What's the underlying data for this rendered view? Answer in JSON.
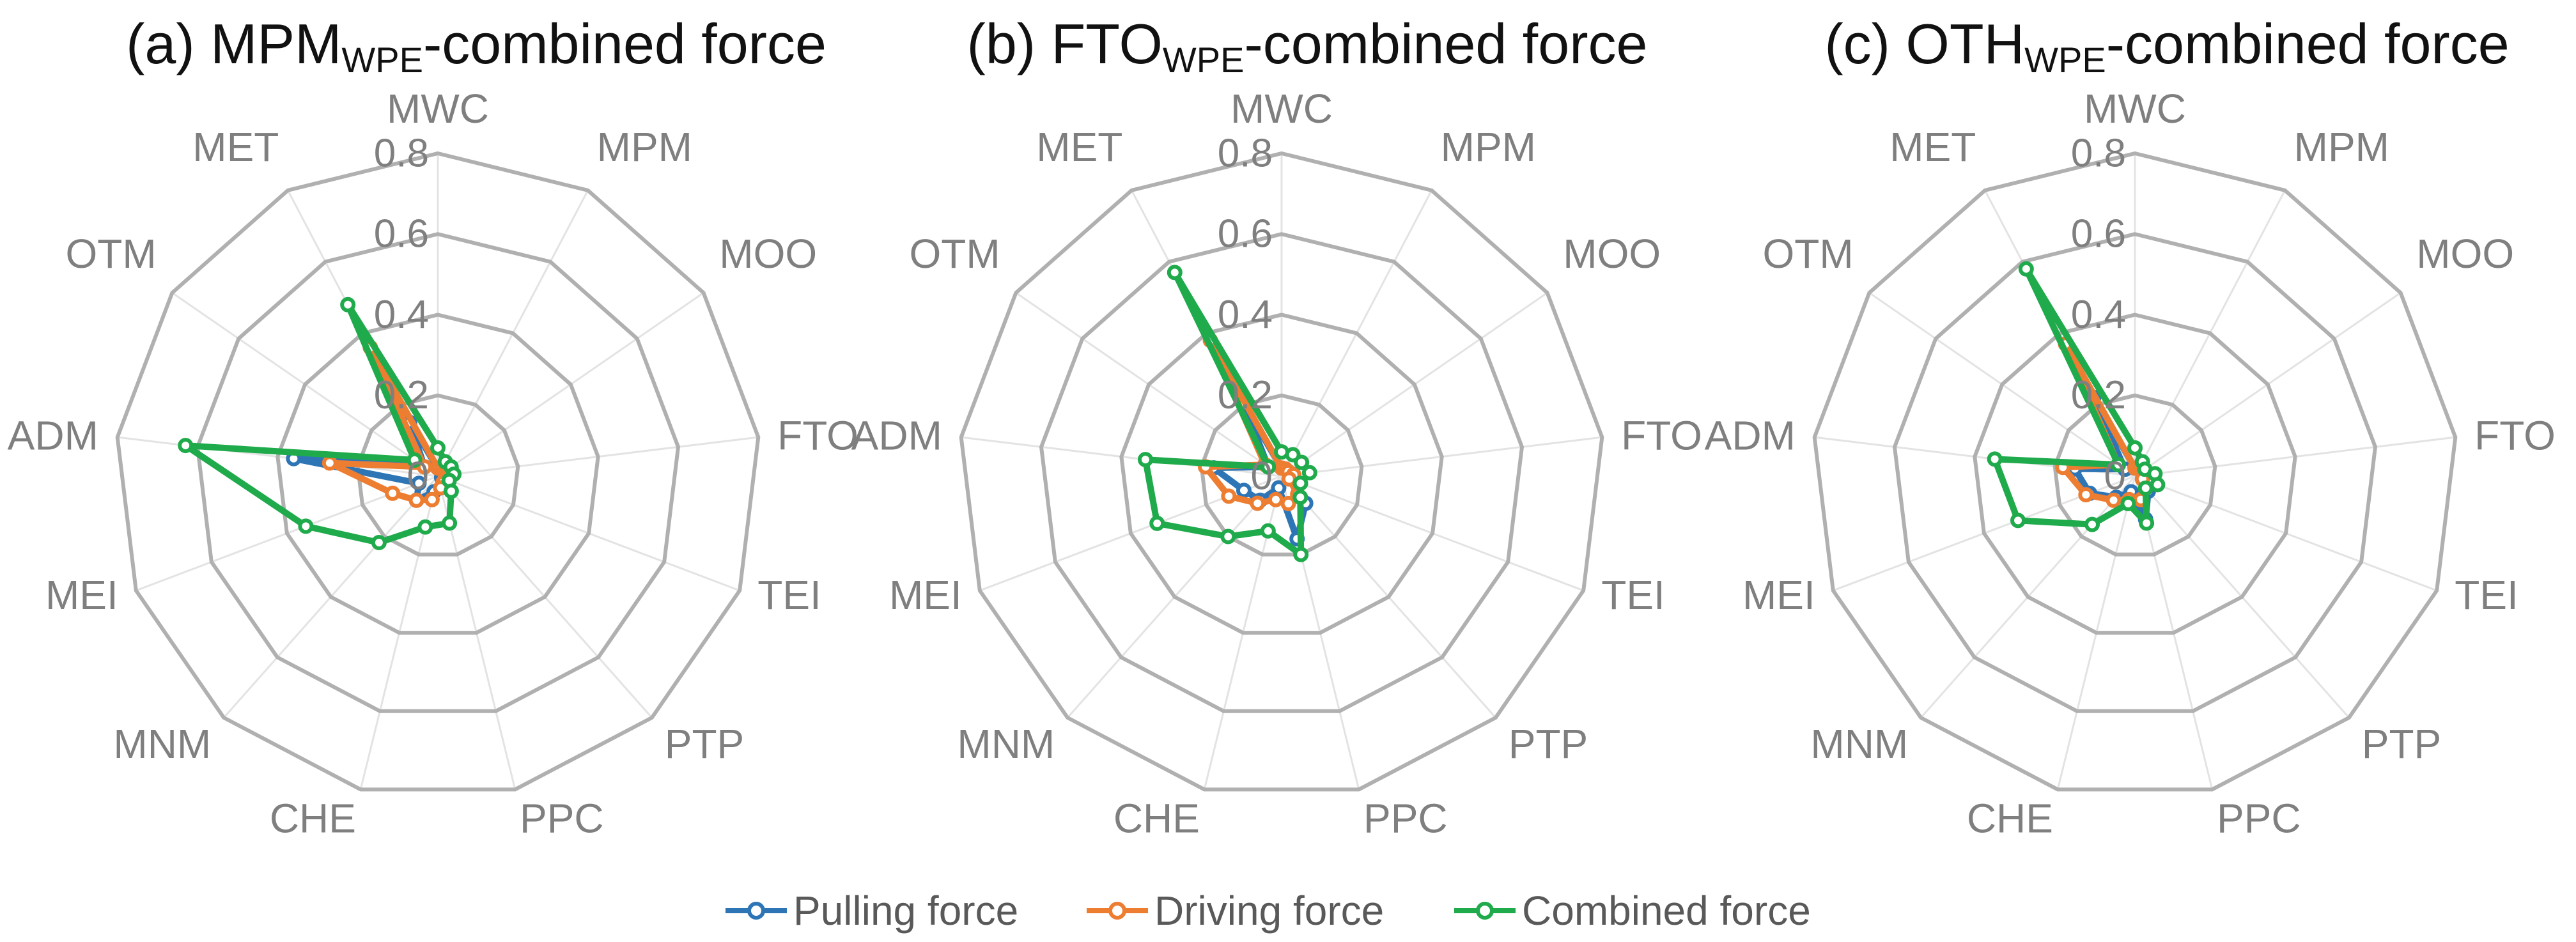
{
  "chart_data": [
    {
      "type": "radar",
      "title_main": "(a) MPM",
      "title_sub": "WPE",
      "title_rest": "-combined force",
      "axes": [
        "MWC",
        "MPM",
        "MOO",
        "FTO",
        "TEI",
        "PTP",
        "PPC",
        "CHE",
        "MNM",
        "MEI",
        "ADM",
        "OTM",
        "MET"
      ],
      "r_ticks": [
        "0",
        "0.2",
        "0.4",
        "0.6",
        "0.8"
      ],
      "rlim": [
        0,
        0.8
      ],
      "series": [
        {
          "name": "Pulling force",
          "values": [
            0.02,
            0.02,
            0.02,
            0.02,
            0.01,
            0.02,
            0.03,
            0.04,
            0.08,
            0.05,
            0.36,
            0.04,
            0.15
          ]
        },
        {
          "name": "Driving force",
          "values": [
            0.02,
            0.02,
            0.02,
            0.02,
            0.02,
            0.02,
            0.03,
            0.06,
            0.08,
            0.12,
            0.27,
            0.04,
            0.36
          ]
        },
        {
          "name": "Combined force",
          "values": [
            0.07,
            0.04,
            0.04,
            0.04,
            0.03,
            0.05,
            0.12,
            0.13,
            0.22,
            0.35,
            0.63,
            0.07,
            0.48
          ]
        }
      ]
    },
    {
      "type": "radar",
      "title_main": "(b) FTO",
      "title_sub": "WPE",
      "title_rest": "-combined force",
      "axes": [
        "MWC",
        "MPM",
        "MOO",
        "FTO",
        "TEI",
        "PTP",
        "PPC",
        "CHE",
        "MNM",
        "MEI",
        "ADM",
        "OTM",
        "MET"
      ],
      "r_ticks": [
        "0",
        "0.2",
        "0.4",
        "0.6",
        "0.8"
      ],
      "rlim": [
        0,
        0.8
      ],
      "series": [
        {
          "name": "Pulling force",
          "values": [
            0.02,
            0.02,
            0.02,
            0.03,
            0.02,
            0.09,
            0.16,
            0.03,
            0.08,
            0.1,
            0.17,
            0.04,
            0.2
          ]
        },
        {
          "name": "Driving force",
          "values": [
            0.02,
            0.02,
            0.02,
            0.03,
            0.02,
            0.06,
            0.07,
            0.06,
            0.09,
            0.14,
            0.19,
            0.05,
            0.38
          ]
        },
        {
          "name": "Combined force",
          "values": [
            0.06,
            0.06,
            0.06,
            0.07,
            0.05,
            0.07,
            0.2,
            0.14,
            0.2,
            0.33,
            0.34,
            0.04,
            0.57
          ]
        }
      ]
    },
    {
      "type": "radar",
      "title_main": "(c) OTH",
      "title_sub": "WPE",
      "title_rest": "-combined force",
      "axes": [
        "MWC",
        "MPM",
        "MOO",
        "FTO",
        "TEI",
        "PTP",
        "PPC",
        "CHE",
        "MNM",
        "MEI",
        "ADM",
        "OTM",
        "MET"
      ],
      "r_ticks": [
        "0",
        "0.2",
        "0.4",
        "0.6",
        "0.8"
      ],
      "rlim": [
        0,
        0.8
      ],
      "series": [
        {
          "name": "Pulling force",
          "values": [
            0.02,
            0.02,
            0.02,
            0.02,
            0.02,
            0.05,
            0.11,
            0.04,
            0.07,
            0.12,
            0.15,
            0.03,
            0.22
          ]
        },
        {
          "name": "Driving force",
          "values": [
            0.02,
            0.02,
            0.02,
            0.02,
            0.02,
            0.04,
            0.06,
            0.06,
            0.08,
            0.13,
            0.18,
            0.05,
            0.37
          ]
        },
        {
          "name": "Combined force",
          "values": [
            0.07,
            0.04,
            0.03,
            0.05,
            0.06,
            0.04,
            0.12,
            0.07,
            0.16,
            0.31,
            0.35,
            0.05,
            0.58
          ]
        }
      ]
    }
  ],
  "legend": {
    "items": [
      {
        "label": "Pulling force",
        "color": "#2E75B6"
      },
      {
        "label": "Driving force",
        "color": "#ED7D31"
      },
      {
        "label": "Combined force",
        "color": "#1FAA4B"
      }
    ]
  },
  "colors": {
    "grid_ring": "#B0B0B0",
    "spoke": "#E3E3E3",
    "axis_label": "#7F7F7F",
    "tick_label": "#7F7F7F",
    "marker_fill": "#FFFFFF"
  }
}
